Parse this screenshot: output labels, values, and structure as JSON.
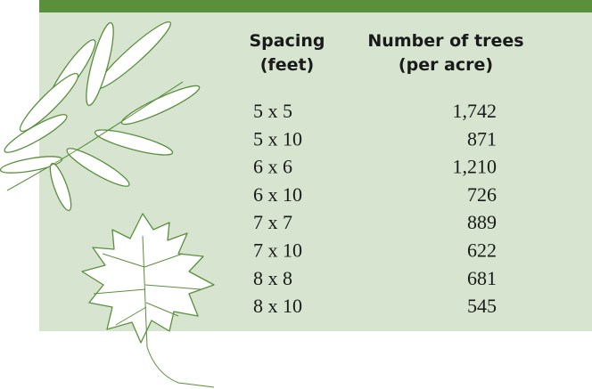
{
  "table": {
    "headers": [
      [
        "Spacing",
        "(feet)"
      ],
      [
        "Number of trees",
        "(per acre)"
      ]
    ],
    "rows": [
      [
        "5 x 5",
        "1,742"
      ],
      [
        "5 x 10",
        "871"
      ],
      [
        "6 x 6",
        "1,210"
      ],
      [
        "6 x 10",
        "726"
      ],
      [
        "7 x 7",
        "889"
      ],
      [
        "7 x 10",
        "622"
      ],
      [
        "8 x 8",
        "681"
      ],
      [
        "8 x 10",
        "545"
      ]
    ]
  }
}
